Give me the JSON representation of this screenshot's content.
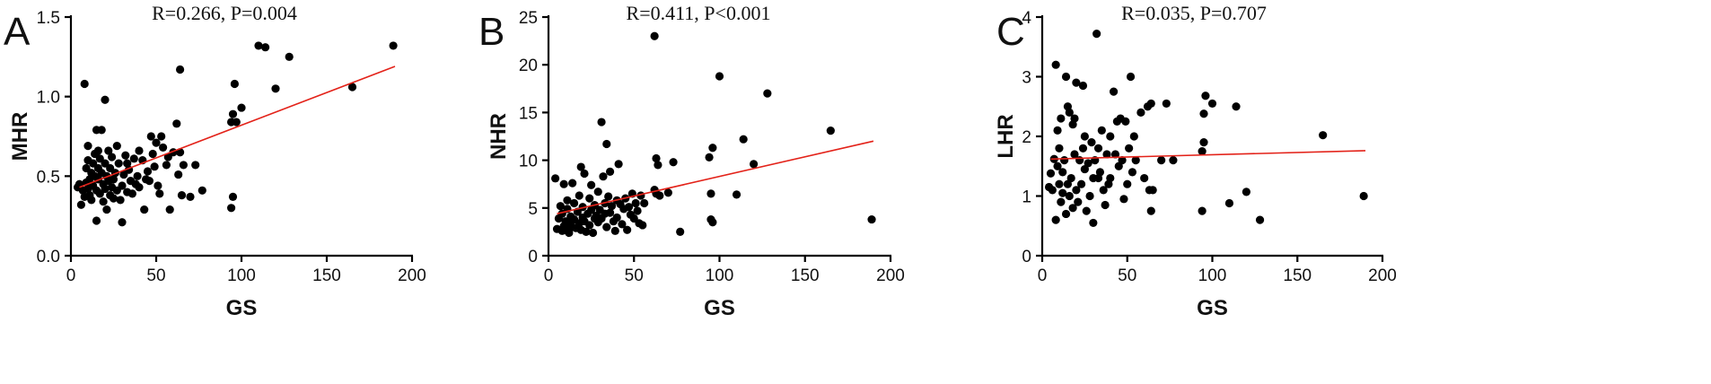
{
  "chart_data": [
    {
      "type": "scatter",
      "panel_label": "A",
      "annotation": "R=0.266, P=0.004",
      "xlabel": "GS",
      "ylabel": "MHR",
      "xlim": [
        0,
        200
      ],
      "ylim": [
        0,
        1.5
      ],
      "xticks": [
        0,
        50,
        100,
        150,
        200
      ],
      "yticks": [
        0.0,
        0.5,
        1.0,
        1.5
      ],
      "xtick_labels": [
        "0",
        "50",
        "100",
        "150",
        "200"
      ],
      "ytick_labels": [
        "0.0",
        "0.5",
        "1.0",
        "1.5"
      ],
      "fit_line": [
        [
          5,
          0.43
        ],
        [
          190,
          1.19
        ]
      ],
      "points": [
        [
          4,
          0.43
        ],
        [
          5,
          0.45
        ],
        [
          6,
          0.32
        ],
        [
          7,
          0.41
        ],
        [
          8,
          1.08
        ],
        [
          8,
          0.37
        ],
        [
          9,
          0.46
        ],
        [
          9,
          0.55
        ],
        [
          10,
          0.6
        ],
        [
          10,
          0.69
        ],
        [
          10,
          0.42
        ],
        [
          11,
          0.38
        ],
        [
          11,
          0.48
        ],
        [
          12,
          0.35
        ],
        [
          12,
          0.52
        ],
        [
          13,
          0.58
        ],
        [
          13,
          0.44
        ],
        [
          14,
          0.64
        ],
        [
          14,
          0.5
        ],
        [
          15,
          0.79
        ],
        [
          15,
          0.41
        ],
        [
          15,
          0.22
        ],
        [
          16,
          0.66
        ],
        [
          16,
          0.55
        ],
        [
          16,
          0.48
        ],
        [
          17,
          0.39
        ],
        [
          17,
          0.61
        ],
        [
          18,
          0.79
        ],
        [
          18,
          0.52
        ],
        [
          19,
          0.45
        ],
        [
          19,
          0.34
        ],
        [
          20,
          0.98
        ],
        [
          20,
          0.58
        ],
        [
          20,
          0.42
        ],
        [
          21,
          0.5
        ],
        [
          21,
          0.29
        ],
        [
          22,
          0.66
        ],
        [
          22,
          0.47
        ],
        [
          23,
          0.38
        ],
        [
          23,
          0.55
        ],
        [
          24,
          0.62
        ],
        [
          24,
          0.43
        ],
        [
          25,
          0.48
        ],
        [
          25,
          0.36
        ],
        [
          26,
          0.52
        ],
        [
          27,
          0.41
        ],
        [
          27,
          0.69
        ],
        [
          28,
          0.58
        ],
        [
          29,
          0.35
        ],
        [
          30,
          0.44
        ],
        [
          30,
          0.21
        ],
        [
          31,
          0.51
        ],
        [
          32,
          0.63
        ],
        [
          33,
          0.58
        ],
        [
          33,
          0.4
        ],
        [
          34,
          0.54
        ],
        [
          35,
          0.47
        ],
        [
          36,
          0.39
        ],
        [
          37,
          0.61
        ],
        [
          38,
          0.45
        ],
        [
          39,
          0.5
        ],
        [
          40,
          0.66
        ],
        [
          40,
          0.43
        ],
        [
          42,
          0.6
        ],
        [
          43,
          0.29
        ],
        [
          44,
          0.48
        ],
        [
          45,
          0.53
        ],
        [
          46,
          0.47
        ],
        [
          47,
          0.75
        ],
        [
          48,
          0.64
        ],
        [
          49,
          0.56
        ],
        [
          50,
          0.71
        ],
        [
          51,
          0.44
        ],
        [
          52,
          0.39
        ],
        [
          53,
          0.75
        ],
        [
          54,
          0.68
        ],
        [
          56,
          0.57
        ],
        [
          57,
          0.62
        ],
        [
          58,
          0.29
        ],
        [
          60,
          0.65
        ],
        [
          62,
          0.83
        ],
        [
          63,
          0.51
        ],
        [
          64,
          1.17
        ],
        [
          64,
          0.65
        ],
        [
          65,
          0.38
        ],
        [
          66,
          0.57
        ],
        [
          70,
          0.37
        ],
        [
          73,
          0.57
        ],
        [
          77,
          0.41
        ],
        [
          94,
          0.3
        ],
        [
          94,
          0.84
        ],
        [
          95,
          0.37
        ],
        [
          95,
          0.89
        ],
        [
          96,
          1.08
        ],
        [
          97,
          0.84
        ],
        [
          100,
          0.93
        ],
        [
          110,
          1.32
        ],
        [
          114,
          1.31
        ],
        [
          120,
          1.05
        ],
        [
          128,
          1.25
        ],
        [
          165,
          1.06
        ],
        [
          189,
          1.32
        ]
      ]
    },
    {
      "type": "scatter",
      "panel_label": "B",
      "annotation": "R=0.411, P<0.001",
      "xlabel": "GS",
      "ylabel": "NHR",
      "xlim": [
        0,
        200
      ],
      "ylim": [
        0,
        25
      ],
      "xticks": [
        0,
        50,
        100,
        150,
        200
      ],
      "yticks": [
        0,
        5,
        10,
        15,
        20,
        25
      ],
      "xtick_labels": [
        "0",
        "50",
        "100",
        "150",
        "200"
      ],
      "ytick_labels": [
        "0",
        "5",
        "10",
        "15",
        "20",
        "25"
      ],
      "fit_line": [
        [
          5,
          4.4
        ],
        [
          190,
          12.0
        ]
      ],
      "points": [
        [
          4,
          8.1
        ],
        [
          5,
          2.8
        ],
        [
          6,
          3.9
        ],
        [
          7,
          5.2
        ],
        [
          8,
          2.6
        ],
        [
          8,
          4.4
        ],
        [
          9,
          7.5
        ],
        [
          9,
          3.1
        ],
        [
          10,
          2.7
        ],
        [
          10,
          3.6
        ],
        [
          11,
          4.9
        ],
        [
          11,
          5.8
        ],
        [
          12,
          3.3
        ],
        [
          12,
          2.4
        ],
        [
          13,
          4.1
        ],
        [
          14,
          7.6
        ],
        [
          14,
          3.0
        ],
        [
          15,
          5.5
        ],
        [
          15,
          3.8
        ],
        [
          16,
          2.9
        ],
        [
          17,
          4.6
        ],
        [
          18,
          6.3
        ],
        [
          18,
          3.4
        ],
        [
          19,
          9.3
        ],
        [
          19,
          2.7
        ],
        [
          20,
          4.0
        ],
        [
          20,
          5.1
        ],
        [
          21,
          8.6
        ],
        [
          21,
          3.6
        ],
        [
          22,
          2.5
        ],
        [
          23,
          4.4
        ],
        [
          24,
          6.0
        ],
        [
          24,
          3.2
        ],
        [
          25,
          4.8
        ],
        [
          25,
          7.4
        ],
        [
          26,
          2.4
        ],
        [
          27,
          3.9
        ],
        [
          27,
          5.3
        ],
        [
          28,
          4.2
        ],
        [
          29,
          6.7
        ],
        [
          29,
          3.5
        ],
        [
          30,
          4.8
        ],
        [
          31,
          14.0
        ],
        [
          31,
          3.9
        ],
        [
          32,
          8.3
        ],
        [
          33,
          5.5
        ],
        [
          33,
          4.4
        ],
        [
          34,
          11.7
        ],
        [
          34,
          3.0
        ],
        [
          35,
          6.2
        ],
        [
          36,
          8.8
        ],
        [
          36,
          4.5
        ],
        [
          37,
          5.2
        ],
        [
          38,
          3.6
        ],
        [
          39,
          2.6
        ],
        [
          40,
          5.8
        ],
        [
          40,
          4.0
        ],
        [
          41,
          9.6
        ],
        [
          42,
          5.4
        ],
        [
          43,
          3.3
        ],
        [
          44,
          4.9
        ],
        [
          45,
          6.0
        ],
        [
          46,
          2.7
        ],
        [
          47,
          5.1
        ],
        [
          48,
          4.3
        ],
        [
          49,
          6.5
        ],
        [
          50,
          3.9
        ],
        [
          51,
          5.5
        ],
        [
          52,
          4.7
        ],
        [
          53,
          3.4
        ],
        [
          54,
          6.3
        ],
        [
          55,
          3.2
        ],
        [
          56,
          5.5
        ],
        [
          62,
          23.0
        ],
        [
          62,
          6.9
        ],
        [
          63,
          10.2
        ],
        [
          63,
          6.5
        ],
        [
          64,
          9.5
        ],
        [
          65,
          6.3
        ],
        [
          70,
          6.6
        ],
        [
          73,
          9.8
        ],
        [
          77,
          2.5
        ],
        [
          94,
          10.3
        ],
        [
          95,
          3.8
        ],
        [
          95,
          6.5
        ],
        [
          96,
          3.5
        ],
        [
          96,
          11.3
        ],
        [
          100,
          18.8
        ],
        [
          110,
          6.4
        ],
        [
          114,
          12.2
        ],
        [
          120,
          9.6
        ],
        [
          128,
          17.0
        ],
        [
          165,
          13.1
        ],
        [
          189,
          3.8
        ]
      ]
    },
    {
      "type": "scatter",
      "panel_label": "C",
      "annotation": "R=0.035, P=0.707",
      "xlabel": "GS",
      "ylabel": "LHR",
      "xlim": [
        0,
        200
      ],
      "ylim": [
        0,
        4
      ],
      "xticks": [
        0,
        50,
        100,
        150,
        200
      ],
      "yticks": [
        0,
        1,
        2,
        3,
        4
      ],
      "xtick_labels": [
        "0",
        "50",
        "100",
        "150",
        "200"
      ],
      "ytick_labels": [
        "0",
        "1",
        "2",
        "3",
        "4"
      ],
      "fit_line": [
        [
          5,
          1.62
        ],
        [
          190,
          1.76
        ]
      ],
      "points": [
        [
          4,
          1.15
        ],
        [
          5,
          1.38
        ],
        [
          6,
          1.1
        ],
        [
          7,
          1.62
        ],
        [
          8,
          0.6
        ],
        [
          8,
          3.2
        ],
        [
          9,
          1.5
        ],
        [
          9,
          2.1
        ],
        [
          10,
          1.2
        ],
        [
          10,
          1.8
        ],
        [
          11,
          0.9
        ],
        [
          11,
          2.3
        ],
        [
          12,
          1.4
        ],
        [
          12,
          1.05
        ],
        [
          13,
          1.6
        ],
        [
          14,
          3.0
        ],
        [
          14,
          0.7
        ],
        [
          15,
          2.5
        ],
        [
          15,
          1.2
        ],
        [
          16,
          2.4
        ],
        [
          16,
          1.0
        ],
        [
          17,
          1.3
        ],
        [
          18,
          2.2
        ],
        [
          18,
          0.8
        ],
        [
          19,
          1.7
        ],
        [
          19,
          2.3
        ],
        [
          20,
          2.9
        ],
        [
          20,
          1.1
        ],
        [
          21,
          0.9
        ],
        [
          22,
          1.6
        ],
        [
          23,
          1.2
        ],
        [
          24,
          2.85
        ],
        [
          24,
          1.8
        ],
        [
          25,
          2.0
        ],
        [
          25,
          1.45
        ],
        [
          26,
          0.75
        ],
        [
          27,
          1.55
        ],
        [
          28,
          1.0
        ],
        [
          29,
          1.9
        ],
        [
          30,
          1.3
        ],
        [
          30,
          0.55
        ],
        [
          31,
          1.6
        ],
        [
          32,
          3.72
        ],
        [
          33,
          1.8
        ],
        [
          33,
          1.3
        ],
        [
          34,
          1.4
        ],
        [
          35,
          2.1
        ],
        [
          36,
          1.1
        ],
        [
          37,
          0.85
        ],
        [
          38,
          1.7
        ],
        [
          39,
          1.2
        ],
        [
          40,
          2.0
        ],
        [
          40,
          1.3
        ],
        [
          42,
          2.75
        ],
        [
          43,
          1.7
        ],
        [
          44,
          2.25
        ],
        [
          45,
          1.5
        ],
        [
          46,
          2.3
        ],
        [
          47,
          1.6
        ],
        [
          48,
          0.95
        ],
        [
          49,
          2.25
        ],
        [
          50,
          1.2
        ],
        [
          51,
          1.8
        ],
        [
          52,
          3.0
        ],
        [
          53,
          1.4
        ],
        [
          54,
          2.0
        ],
        [
          55,
          1.6
        ],
        [
          58,
          2.4
        ],
        [
          60,
          1.3
        ],
        [
          62,
          2.5
        ],
        [
          63,
          1.1
        ],
        [
          64,
          2.55
        ],
        [
          64,
          0.75
        ],
        [
          65,
          1.1
        ],
        [
          70,
          1.6
        ],
        [
          73,
          2.55
        ],
        [
          77,
          1.6
        ],
        [
          94,
          1.75
        ],
        [
          94,
          0.75
        ],
        [
          95,
          1.9
        ],
        [
          95,
          2.38
        ],
        [
          96,
          2.68
        ],
        [
          100,
          2.55
        ],
        [
          110,
          0.88
        ],
        [
          114,
          2.5
        ],
        [
          120,
          1.07
        ],
        [
          128,
          0.6
        ],
        [
          165,
          2.02
        ],
        [
          189,
          1.0
        ]
      ]
    }
  ]
}
